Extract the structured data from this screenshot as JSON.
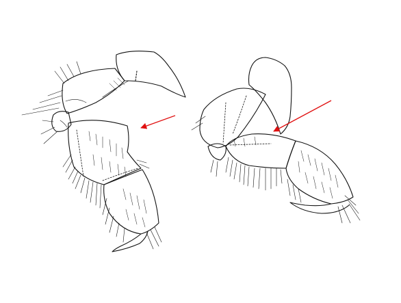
{
  "figure": {
    "background": "#ffffff",
    "ink_color": "#111111",
    "arrow_color": "#e01010",
    "panels": [
      {
        "name": "left-appendage",
        "arrow": "red-pointer-arrow"
      },
      {
        "name": "right-appendage",
        "arrow": "red-pointer-arrow"
      }
    ]
  }
}
